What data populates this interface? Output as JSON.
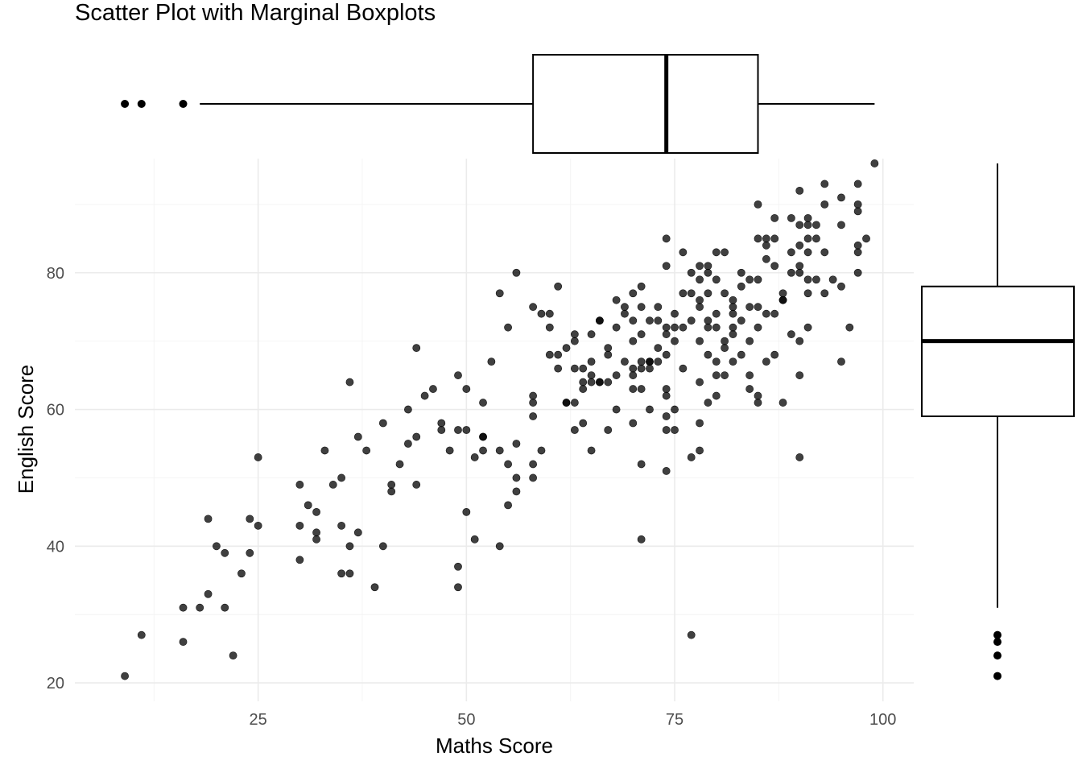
{
  "chart_data": {
    "type": "scatter",
    "title": "Scatter Plot with Marginal Boxplots",
    "xlabel": "Maths Score",
    "ylabel": "English Score",
    "xlim": [
      3,
      103.7
    ],
    "ylim": [
      17.3,
      96.7
    ],
    "x_ticks": [
      25,
      50,
      75,
      100
    ],
    "y_ticks": [
      20,
      40,
      60,
      80
    ],
    "grid": true,
    "point_color": "#000000",
    "point_opacity": 0.75,
    "points": [
      [
        9,
        21
      ],
      [
        11,
        27
      ],
      [
        16,
        26
      ],
      [
        16,
        31
      ],
      [
        18,
        31
      ],
      [
        19,
        44
      ],
      [
        19,
        33
      ],
      [
        20,
        40
      ],
      [
        21,
        39
      ],
      [
        21,
        31
      ],
      [
        22,
        24
      ],
      [
        23,
        36
      ],
      [
        24,
        44
      ],
      [
        24,
        39
      ],
      [
        25,
        43
      ],
      [
        25,
        53
      ],
      [
        30,
        49
      ],
      [
        30,
        43
      ],
      [
        30,
        38
      ],
      [
        31,
        46
      ],
      [
        32,
        42
      ],
      [
        32,
        41
      ],
      [
        32,
        45
      ],
      [
        33,
        54
      ],
      [
        34,
        49
      ],
      [
        35,
        50
      ],
      [
        35,
        43
      ],
      [
        35,
        36
      ],
      [
        36,
        36
      ],
      [
        36,
        40
      ],
      [
        36,
        64
      ],
      [
        37,
        56
      ],
      [
        37,
        42
      ],
      [
        38,
        54
      ],
      [
        39,
        34
      ],
      [
        40,
        58
      ],
      [
        40,
        40
      ],
      [
        41,
        48
      ],
      [
        41,
        49
      ],
      [
        42,
        52
      ],
      [
        43,
        55
      ],
      [
        43,
        60
      ],
      [
        44,
        49
      ],
      [
        44,
        56
      ],
      [
        44,
        69
      ],
      [
        45,
        62
      ],
      [
        46,
        63
      ],
      [
        47,
        58
      ],
      [
        47,
        57
      ],
      [
        48,
        54
      ],
      [
        49,
        65
      ],
      [
        49,
        57
      ],
      [
        49,
        37
      ],
      [
        49,
        34
      ],
      [
        50,
        57
      ],
      [
        50,
        63
      ],
      [
        50,
        45
      ],
      [
        51,
        53
      ],
      [
        51,
        41
      ],
      [
        52,
        54
      ],
      [
        52,
        56
      ],
      [
        52,
        61
      ],
      [
        52,
        56
      ],
      [
        53,
        67
      ],
      [
        54,
        54
      ],
      [
        54,
        77
      ],
      [
        54,
        40
      ],
      [
        55,
        72
      ],
      [
        55,
        52
      ],
      [
        55,
        46
      ],
      [
        56,
        48
      ],
      [
        56,
        50
      ],
      [
        56,
        55
      ],
      [
        56,
        80
      ],
      [
        58,
        62
      ],
      [
        58,
        61
      ],
      [
        58,
        59
      ],
      [
        58,
        75
      ],
      [
        58,
        52
      ],
      [
        58,
        50
      ],
      [
        59,
        74
      ],
      [
        59,
        54
      ],
      [
        60,
        74
      ],
      [
        60,
        72
      ],
      [
        60,
        68
      ],
      [
        61,
        78
      ],
      [
        61,
        66
      ],
      [
        61,
        68
      ],
      [
        62,
        69
      ],
      [
        62,
        61
      ],
      [
        62,
        61
      ],
      [
        63,
        57
      ],
      [
        63,
        61
      ],
      [
        63,
        66
      ],
      [
        63,
        70
      ],
      [
        63,
        71
      ],
      [
        64,
        58
      ],
      [
        64,
        66
      ],
      [
        64,
        64
      ],
      [
        64,
        63
      ],
      [
        65,
        67
      ],
      [
        65,
        71
      ],
      [
        65,
        65
      ],
      [
        65,
        64
      ],
      [
        65,
        54
      ],
      [
        66,
        73
      ],
      [
        66,
        64
      ],
      [
        66,
        73
      ],
      [
        66,
        64
      ],
      [
        67,
        64
      ],
      [
        67,
        68
      ],
      [
        67,
        69
      ],
      [
        67,
        57
      ],
      [
        68,
        76
      ],
      [
        68,
        72
      ],
      [
        68,
        65
      ],
      [
        68,
        60
      ],
      [
        69,
        74
      ],
      [
        69,
        75
      ],
      [
        69,
        67
      ],
      [
        70,
        77
      ],
      [
        70,
        73
      ],
      [
        70,
        70
      ],
      [
        70,
        63
      ],
      [
        70,
        66
      ],
      [
        70,
        58
      ],
      [
        70,
        65
      ],
      [
        71,
        71
      ],
      [
        71,
        67
      ],
      [
        71,
        63
      ],
      [
        71,
        66
      ],
      [
        71,
        52
      ],
      [
        71,
        78
      ],
      [
        71,
        75
      ],
      [
        71,
        41
      ],
      [
        72,
        60
      ],
      [
        72,
        66
      ],
      [
        72,
        67
      ],
      [
        72,
        73
      ],
      [
        72,
        67
      ],
      [
        73,
        73
      ],
      [
        73,
        67
      ],
      [
        73,
        69
      ],
      [
        73,
        75
      ],
      [
        74,
        62
      ],
      [
        74,
        71
      ],
      [
        74,
        72
      ],
      [
        74,
        68
      ],
      [
        74,
        81
      ],
      [
        74,
        57
      ],
      [
        74,
        59
      ],
      [
        74,
        51
      ],
      [
        74,
        85
      ],
      [
        74,
        63
      ],
      [
        75,
        72
      ],
      [
        75,
        70
      ],
      [
        75,
        74
      ],
      [
        75,
        57
      ],
      [
        75,
        60
      ],
      [
        76,
        83
      ],
      [
        76,
        72
      ],
      [
        76,
        66
      ],
      [
        76,
        77
      ],
      [
        77,
        53
      ],
      [
        77,
        27
      ],
      [
        77,
        73
      ],
      [
        77,
        77
      ],
      [
        77,
        80
      ],
      [
        78,
        81
      ],
      [
        78,
        79
      ],
      [
        78,
        76
      ],
      [
        78,
        70
      ],
      [
        78,
        64
      ],
      [
        78,
        54
      ],
      [
        78,
        58
      ],
      [
        78,
        75
      ],
      [
        79,
        72
      ],
      [
        79,
        61
      ],
      [
        79,
        80
      ],
      [
        79,
        68
      ],
      [
        79,
        73
      ],
      [
        79,
        77
      ],
      [
        79,
        81
      ],
      [
        80,
        62
      ],
      [
        80,
        83
      ],
      [
        80,
        67
      ],
      [
        80,
        65
      ],
      [
        80,
        72
      ],
      [
        80,
        74
      ],
      [
        80,
        79
      ],
      [
        81,
        69
      ],
      [
        81,
        83
      ],
      [
        81,
        65
      ],
      [
        81,
        70
      ],
      [
        81,
        77
      ],
      [
        82,
        76
      ],
      [
        82,
        75
      ],
      [
        82,
        74
      ],
      [
        82,
        71
      ],
      [
        82,
        72
      ],
      [
        82,
        67
      ],
      [
        83,
        80
      ],
      [
        83,
        78
      ],
      [
        83,
        73
      ],
      [
        83,
        68
      ],
      [
        84,
        79
      ],
      [
        84,
        75
      ],
      [
        84,
        70
      ],
      [
        84,
        63
      ],
      [
        84,
        65
      ],
      [
        85,
        62
      ],
      [
        85,
        61
      ],
      [
        85,
        72
      ],
      [
        85,
        79
      ],
      [
        85,
        85
      ],
      [
        85,
        75
      ],
      [
        85,
        90
      ],
      [
        86,
        84
      ],
      [
        86,
        74
      ],
      [
        86,
        82
      ],
      [
        86,
        85
      ],
      [
        86,
        67
      ],
      [
        87,
        85
      ],
      [
        87,
        74
      ],
      [
        87,
        81
      ],
      [
        87,
        68
      ],
      [
        87,
        88
      ],
      [
        88,
        76
      ],
      [
        88,
        76
      ],
      [
        88,
        61
      ],
      [
        88,
        77
      ],
      [
        89,
        80
      ],
      [
        89,
        88
      ],
      [
        89,
        83
      ],
      [
        89,
        71
      ],
      [
        90,
        81
      ],
      [
        90,
        92
      ],
      [
        90,
        84
      ],
      [
        90,
        80
      ],
      [
        90,
        65
      ],
      [
        90,
        53
      ],
      [
        90,
        87
      ],
      [
        90,
        70
      ],
      [
        91,
        77
      ],
      [
        91,
        83
      ],
      [
        91,
        79
      ],
      [
        91,
        87
      ],
      [
        91,
        72
      ],
      [
        91,
        85
      ],
      [
        91,
        88
      ],
      [
        92,
        85
      ],
      [
        92,
        79
      ],
      [
        92,
        87
      ],
      [
        93,
        83
      ],
      [
        93,
        90
      ],
      [
        93,
        77
      ],
      [
        93,
        93
      ],
      [
        94,
        79
      ],
      [
        95,
        87
      ],
      [
        95,
        78
      ],
      [
        95,
        67
      ],
      [
        95,
        91
      ],
      [
        96,
        72
      ],
      [
        97,
        93
      ],
      [
        97,
        80
      ],
      [
        97,
        90
      ],
      [
        97,
        89
      ],
      [
        97,
        84
      ],
      [
        97,
        83
      ],
      [
        98,
        85
      ],
      [
        99,
        96
      ]
    ],
    "x_boxplot": {
      "lower_whisker": 18,
      "q1": 58,
      "median": 74,
      "q3": 85,
      "upper_whisker": 99,
      "outliers": [
        9,
        11,
        16
      ]
    },
    "y_boxplot": {
      "lower_whisker": 31,
      "q1": 59,
      "median": 70,
      "q3": 78,
      "upper_whisker": 96,
      "outliers": [
        21,
        24,
        26,
        27
      ]
    }
  }
}
